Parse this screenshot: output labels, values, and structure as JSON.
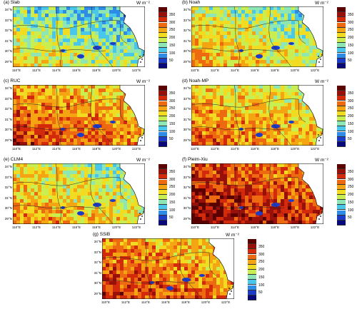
{
  "units": "W m⁻²",
  "colorbar": {
    "colors": [
      "#08087a",
      "#1c3cc8",
      "#2f8ce6",
      "#49c7ea",
      "#8ee6b4",
      "#c8ee52",
      "#f2dc22",
      "#f5a512",
      "#ee6a10",
      "#d42a0c",
      "#98100a",
      "#5a0000"
    ],
    "ticks": [
      "50",
      "100",
      "150",
      "200",
      "250",
      "300",
      "350"
    ]
  },
  "lat_ticks": [
    "34°N",
    "33°N",
    "32°N",
    "31°N",
    "30°N",
    "29°N"
  ],
  "lon_ticks": [
    "110°E",
    "112°E",
    "114°E",
    "116°E",
    "118°E",
    "120°E",
    "122°E"
  ],
  "chart_data": {
    "type": "heatmap",
    "value_range": [
      0,
      400
    ],
    "panels": [
      {
        "label": "(a) Slab",
        "mean_level": 165
      },
      {
        "label": "(b) Noah",
        "mean_level": 200
      },
      {
        "label": "(c) RUC",
        "mean_level": 270
      },
      {
        "label": "(d) Noah-MP",
        "mean_level": 240
      },
      {
        "label": "(e) CLM4",
        "mean_level": 215
      },
      {
        "label": "(f) Pleim-Xiu",
        "mean_level": 320
      },
      {
        "label": "(g) SSiB",
        "mean_level": 275
      }
    ]
  }
}
